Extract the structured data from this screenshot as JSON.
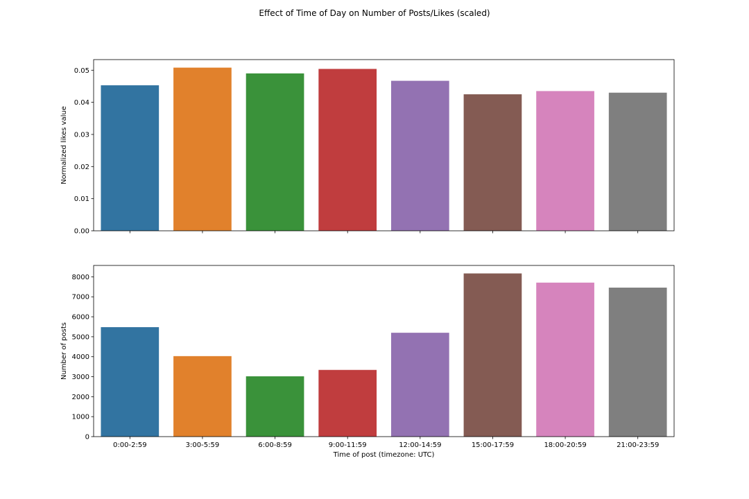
{
  "figure": {
    "suptitle": "Effect of Time of Day on Number of Posts/Likes (scaled)"
  },
  "chart_data": [
    {
      "type": "bar",
      "categories": [
        "0:00-2:59",
        "3:00-5:59",
        "6:00-8:59",
        "9:00-11:59",
        "12:00-14:59",
        "15:00-17:59",
        "18:00-20:59",
        "21:00-23:59"
      ],
      "values": [
        0.0453,
        0.0508,
        0.049,
        0.0504,
        0.0467,
        0.0425,
        0.0435,
        0.043
      ],
      "title": "",
      "xlabel": "",
      "ylabel": "Normalized likes value",
      "ylim": [
        0,
        0.0533
      ],
      "yticks": [
        0.0,
        0.01,
        0.02,
        0.03,
        0.04,
        0.05
      ],
      "ytick_labels": [
        "0.00",
        "0.01",
        "0.02",
        "0.03",
        "0.04",
        "0.05"
      ],
      "show_xtick_labels": false,
      "grid": false,
      "colors": [
        "#3274a1",
        "#e1812c",
        "#3a923a",
        "#c03d3e",
        "#9372b2",
        "#845b53",
        "#d684bd",
        "#7f7f7f"
      ]
    },
    {
      "type": "bar",
      "categories": [
        "0:00-2:59",
        "3:00-5:59",
        "6:00-8:59",
        "9:00-11:59",
        "12:00-14:59",
        "15:00-17:59",
        "18:00-20:59",
        "21:00-23:59"
      ],
      "values": [
        5480,
        4030,
        3020,
        3340,
        5200,
        8170,
        7710,
        7460
      ],
      "title": "",
      "xlabel": "Time of post (timezone: UTC)",
      "ylabel": "Number of posts",
      "ylim": [
        0,
        8570
      ],
      "yticks": [
        0,
        1000,
        2000,
        3000,
        4000,
        5000,
        6000,
        7000,
        8000
      ],
      "ytick_labels": [
        "0",
        "1000",
        "2000",
        "3000",
        "4000",
        "5000",
        "6000",
        "7000",
        "8000"
      ],
      "show_xtick_labels": true,
      "grid": false,
      "colors": [
        "#3274a1",
        "#e1812c",
        "#3a923a",
        "#c03d3e",
        "#9372b2",
        "#845b53",
        "#d684bd",
        "#7f7f7f"
      ]
    }
  ]
}
